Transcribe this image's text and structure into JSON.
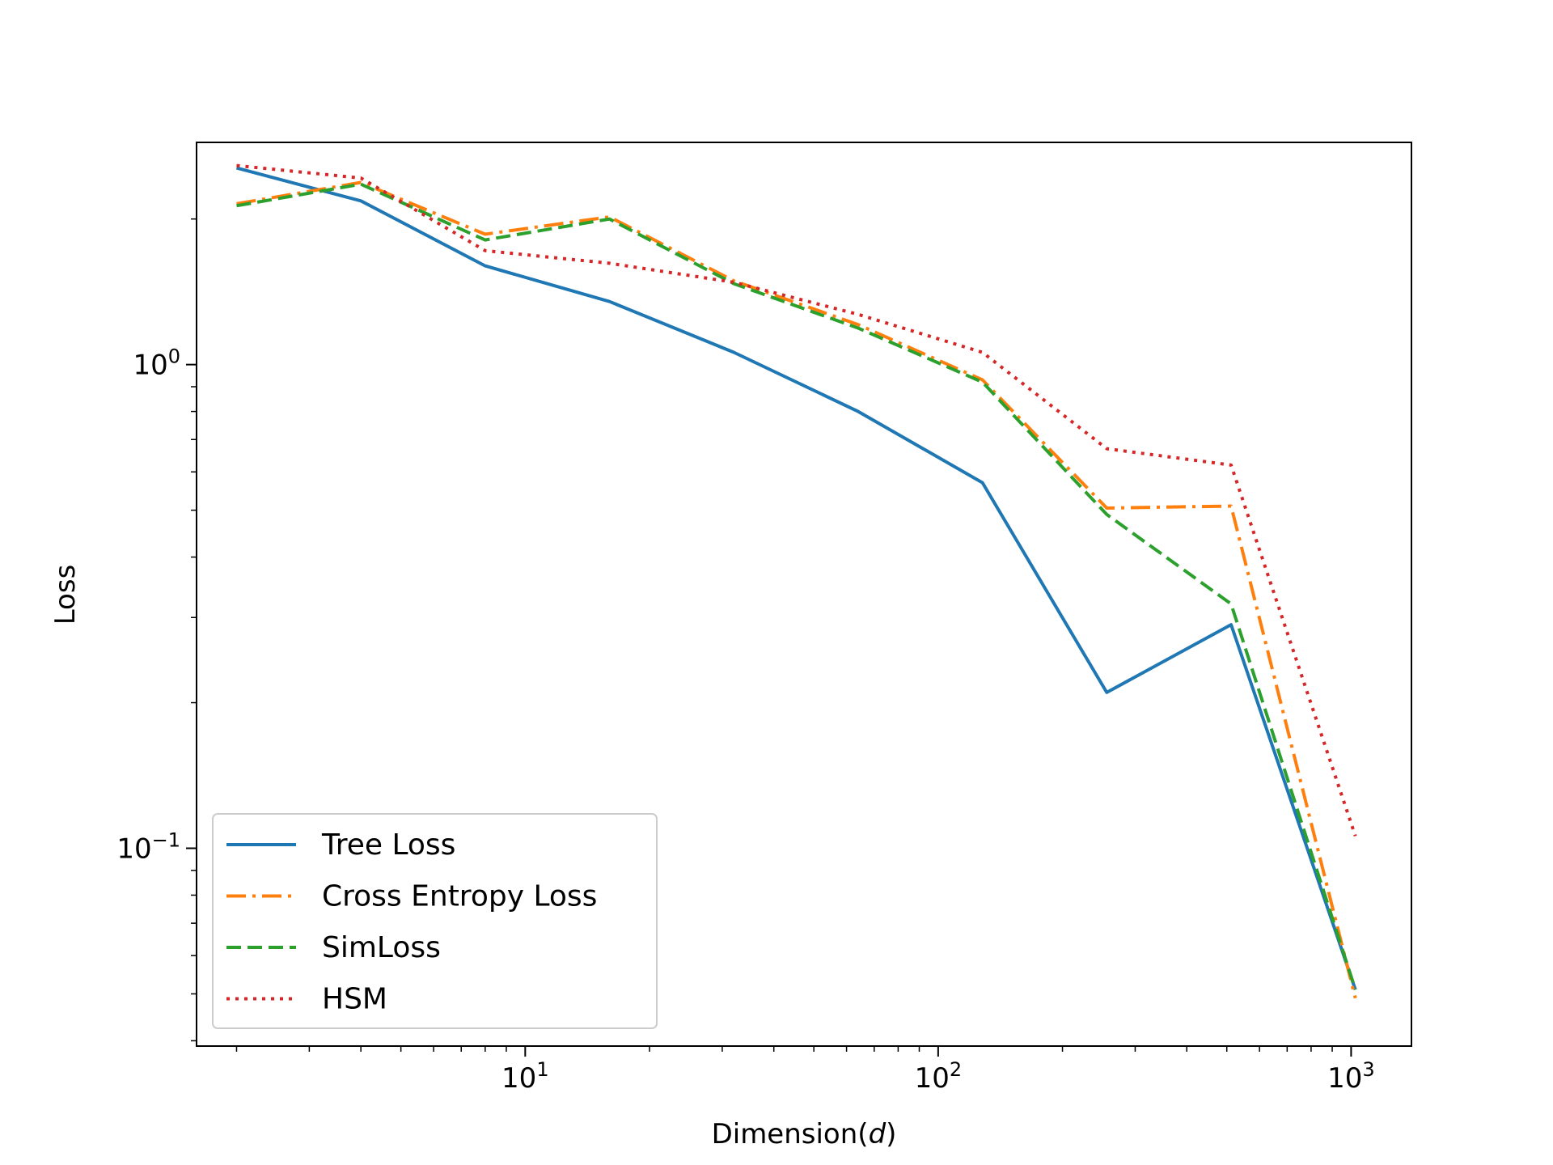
{
  "chart_data": {
    "type": "line",
    "title": "",
    "xlabel": "Dimension(",
    "xlabel_var": "d",
    "xlabel_close": ")",
    "ylabel": "Loss",
    "xscale": "log",
    "yscale": "log",
    "xlim": [
      1.6,
      1400
    ],
    "ylim": [
      0.039,
      2.88
    ],
    "x": [
      2,
      4,
      8,
      16,
      32,
      64,
      128,
      256,
      512,
      1024
    ],
    "x_ticks": [
      {
        "value": 10,
        "base": "10",
        "exp": "1"
      },
      {
        "value": 100,
        "base": "10",
        "exp": "2"
      },
      {
        "value": 1000,
        "base": "10",
        "exp": "3"
      }
    ],
    "y_ticks": [
      {
        "value": 1,
        "base": "10",
        "exp": "0"
      },
      {
        "value": 0.1,
        "base": "10",
        "exp": "−1"
      }
    ],
    "legend_position": "lower-left",
    "series": [
      {
        "name": "Tree Loss",
        "color": "#1f77b4",
        "style": "solid",
        "values": [
          2.55,
          2.18,
          1.6,
          1.35,
          1.06,
          0.8,
          0.57,
          0.21,
          0.29,
          0.051
        ]
      },
      {
        "name": "Cross Entropy Loss",
        "color": "#ff7f0e",
        "style": "dashdot",
        "values": [
          2.15,
          2.38,
          1.86,
          2.02,
          1.49,
          1.21,
          0.93,
          0.505,
          0.51,
          0.049
        ]
      },
      {
        "name": "SimLoss",
        "color": "#2ca02c",
        "style": "dashed",
        "values": [
          2.13,
          2.36,
          1.81,
          2.0,
          1.47,
          1.19,
          0.92,
          0.49,
          0.32,
          0.051
        ]
      },
      {
        "name": "HSM",
        "color": "#d62728",
        "style": "dotted",
        "values": [
          2.58,
          2.43,
          1.72,
          1.62,
          1.48,
          1.27,
          1.06,
          0.67,
          0.62,
          0.106
        ]
      }
    ]
  }
}
